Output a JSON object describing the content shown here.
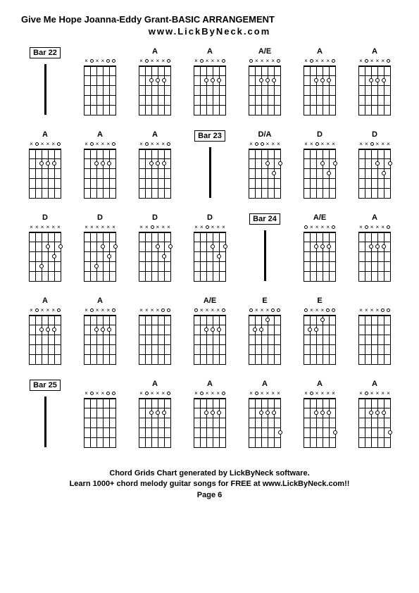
{
  "title": "Give Me Hope Joanna-Eddy Grant-BASIC ARRANGEMENT",
  "subtitle": "www.LickByNeck.com",
  "footer1": "Chord Grids Chart generated by LickByNeck software.",
  "footer2": "Learn 1000+ chord melody guitar songs for FREE at www.LickByNeck.com!!",
  "footer3": "Page 6",
  "frets": 5,
  "strings": 6,
  "cells": [
    {
      "type": "bar",
      "label": "Bar 22"
    },
    {
      "type": "chord",
      "label": "",
      "markers": [
        "x",
        "o",
        "x",
        "x",
        "o",
        "o"
      ],
      "dots": []
    },
    {
      "type": "chord",
      "label": "A",
      "markers": [
        "x",
        "o",
        "x",
        "x",
        "x",
        "o"
      ],
      "dots": [
        [
          3,
          2
        ],
        [
          4,
          2
        ],
        [
          5,
          2
        ]
      ]
    },
    {
      "type": "chord",
      "label": "A",
      "markers": [
        "x",
        "o",
        "x",
        "x",
        "x",
        "o"
      ],
      "dots": [
        [
          3,
          2
        ],
        [
          4,
          2
        ],
        [
          5,
          2
        ]
      ]
    },
    {
      "type": "chord",
      "label": "A/E",
      "markers": [
        "o",
        "x",
        "x",
        "x",
        "x",
        "o"
      ],
      "dots": [
        [
          3,
          2
        ],
        [
          4,
          2
        ],
        [
          5,
          2
        ]
      ]
    },
    {
      "type": "chord",
      "label": "A",
      "markers": [
        "x",
        "o",
        "x",
        "x",
        "x",
        "o"
      ],
      "dots": [
        [
          3,
          2
        ],
        [
          4,
          2
        ],
        [
          5,
          2
        ]
      ]
    },
    {
      "type": "chord",
      "label": "A",
      "markers": [
        "x",
        "o",
        "x",
        "x",
        "x",
        "o"
      ],
      "dots": [
        [
          3,
          2
        ],
        [
          4,
          2
        ],
        [
          5,
          2
        ]
      ]
    },
    {
      "type": "chord",
      "label": "A",
      "markers": [
        "x",
        "o",
        "x",
        "x",
        "x",
        "o"
      ],
      "dots": [
        [
          3,
          2
        ],
        [
          4,
          2
        ],
        [
          5,
          2
        ]
      ]
    },
    {
      "type": "chord",
      "label": "A",
      "markers": [
        "x",
        "o",
        "x",
        "x",
        "x",
        "o"
      ],
      "dots": [
        [
          3,
          2
        ],
        [
          4,
          2
        ],
        [
          5,
          2
        ]
      ]
    },
    {
      "type": "chord",
      "label": "A",
      "markers": [
        "x",
        "o",
        "x",
        "x",
        "x",
        "o"
      ],
      "dots": [
        [
          3,
          2
        ],
        [
          4,
          2
        ],
        [
          5,
          2
        ]
      ]
    },
    {
      "type": "bar",
      "label": "Bar 23"
    },
    {
      "type": "chord",
      "label": "D/A",
      "markers": [
        "x",
        "o",
        "o",
        "x",
        "x",
        "x"
      ],
      "dots": [
        [
          4,
          2
        ],
        [
          5,
          3
        ],
        [
          6,
          2
        ]
      ]
    },
    {
      "type": "chord",
      "label": "D",
      "markers": [
        "x",
        "x",
        "o",
        "x",
        "x",
        "x"
      ],
      "dots": [
        [
          4,
          2
        ],
        [
          5,
          3
        ],
        [
          6,
          2
        ]
      ]
    },
    {
      "type": "chord",
      "label": "D",
      "markers": [
        "x",
        "x",
        "o",
        "x",
        "x",
        "x"
      ],
      "dots": [
        [
          4,
          2
        ],
        [
          5,
          3
        ],
        [
          6,
          2
        ]
      ]
    },
    {
      "type": "chord",
      "label": "D",
      "markers": [
        "x",
        "x",
        "x",
        "x",
        "x",
        "x"
      ],
      "dots": [
        [
          3,
          4
        ],
        [
          4,
          2
        ],
        [
          5,
          3
        ],
        [
          6,
          2
        ]
      ],
      "side": [
        "",
        "",
        "",
        "",
        ""
      ]
    },
    {
      "type": "chord",
      "label": "D",
      "markers": [
        "x",
        "x",
        "x",
        "x",
        "x",
        "x"
      ],
      "dots": [
        [
          3,
          4
        ],
        [
          4,
          2
        ],
        [
          5,
          3
        ],
        [
          6,
          2
        ]
      ]
    },
    {
      "type": "chord",
      "label": "D",
      "markers": [
        "x",
        "x",
        "o",
        "x",
        "x",
        "x"
      ],
      "dots": [
        [
          4,
          2
        ],
        [
          5,
          3
        ],
        [
          6,
          2
        ]
      ]
    },
    {
      "type": "chord",
      "label": "D",
      "markers": [
        "x",
        "x",
        "o",
        "x",
        "x",
        "x"
      ],
      "dots": [
        [
          4,
          2
        ],
        [
          5,
          3
        ],
        [
          6,
          2
        ]
      ]
    },
    {
      "type": "bar",
      "label": "Bar 24"
    },
    {
      "type": "chord",
      "label": "A/E",
      "markers": [
        "o",
        "x",
        "x",
        "x",
        "x",
        "o"
      ],
      "dots": [
        [
          3,
          2
        ],
        [
          4,
          2
        ],
        [
          5,
          2
        ]
      ]
    },
    {
      "type": "chord",
      "label": "A",
      "markers": [
        "x",
        "o",
        "x",
        "x",
        "x",
        "o"
      ],
      "dots": [
        [
          3,
          2
        ],
        [
          4,
          2
        ],
        [
          5,
          2
        ]
      ]
    },
    {
      "type": "chord",
      "label": "A",
      "markers": [
        "x",
        "o",
        "x",
        "x",
        "x",
        "o"
      ],
      "dots": [
        [
          3,
          2
        ],
        [
          4,
          2
        ],
        [
          5,
          2
        ]
      ]
    },
    {
      "type": "chord",
      "label": "A",
      "markers": [
        "x",
        "o",
        "x",
        "x",
        "x",
        "o"
      ],
      "dots": [
        [
          3,
          2
        ],
        [
          4,
          2
        ],
        [
          5,
          2
        ]
      ]
    },
    {
      "type": "chord",
      "label": "",
      "markers": [
        "x",
        "x",
        "x",
        "x",
        "o",
        "o"
      ],
      "dots": []
    },
    {
      "type": "chord",
      "label": "A/E",
      "markers": [
        "o",
        "x",
        "x",
        "x",
        "x",
        "o"
      ],
      "dots": [
        [
          3,
          2
        ],
        [
          4,
          2
        ],
        [
          5,
          2
        ]
      ]
    },
    {
      "type": "chord",
      "label": "E",
      "markers": [
        "o",
        "x",
        "x",
        "x",
        "o",
        "o"
      ],
      "dots": [
        [
          2,
          2
        ],
        [
          3,
          2
        ],
        [
          4,
          1
        ]
      ]
    },
    {
      "type": "chord",
      "label": "E",
      "markers": [
        "o",
        "x",
        "x",
        "x",
        "o",
        "o"
      ],
      "dots": [
        [
          2,
          2
        ],
        [
          3,
          2
        ],
        [
          4,
          1
        ]
      ]
    },
    {
      "type": "chord",
      "label": "",
      "markers": [
        "x",
        "x",
        "x",
        "x",
        "o",
        "o"
      ],
      "dots": []
    },
    {
      "type": "bar",
      "label": "Bar 25"
    },
    {
      "type": "chord",
      "label": "",
      "markers": [
        "x",
        "o",
        "x",
        "x",
        "o",
        "o"
      ],
      "dots": []
    },
    {
      "type": "chord",
      "label": "A",
      "markers": [
        "x",
        "o",
        "x",
        "x",
        "x",
        "o"
      ],
      "dots": [
        [
          3,
          2
        ],
        [
          4,
          2
        ],
        [
          5,
          2
        ]
      ]
    },
    {
      "type": "chord",
      "label": "A",
      "markers": [
        "x",
        "o",
        "x",
        "x",
        "x",
        "o"
      ],
      "dots": [
        [
          3,
          2
        ],
        [
          4,
          2
        ],
        [
          5,
          2
        ]
      ]
    },
    {
      "type": "chord",
      "label": "A",
      "markers": [
        "x",
        "o",
        "x",
        "x",
        "x",
        "x"
      ],
      "dots": [
        [
          3,
          2
        ],
        [
          4,
          2
        ],
        [
          5,
          2
        ],
        [
          6,
          4
        ]
      ]
    },
    {
      "type": "chord",
      "label": "A",
      "markers": [
        "x",
        "o",
        "x",
        "x",
        "x",
        "x"
      ],
      "dots": [
        [
          3,
          2
        ],
        [
          4,
          2
        ],
        [
          5,
          2
        ],
        [
          6,
          4
        ]
      ]
    },
    {
      "type": "chord",
      "label": "A",
      "markers": [
        "x",
        "o",
        "x",
        "x",
        "x",
        "x"
      ],
      "dots": [
        [
          3,
          2
        ],
        [
          4,
          2
        ],
        [
          5,
          2
        ],
        [
          6,
          4
        ]
      ]
    }
  ]
}
